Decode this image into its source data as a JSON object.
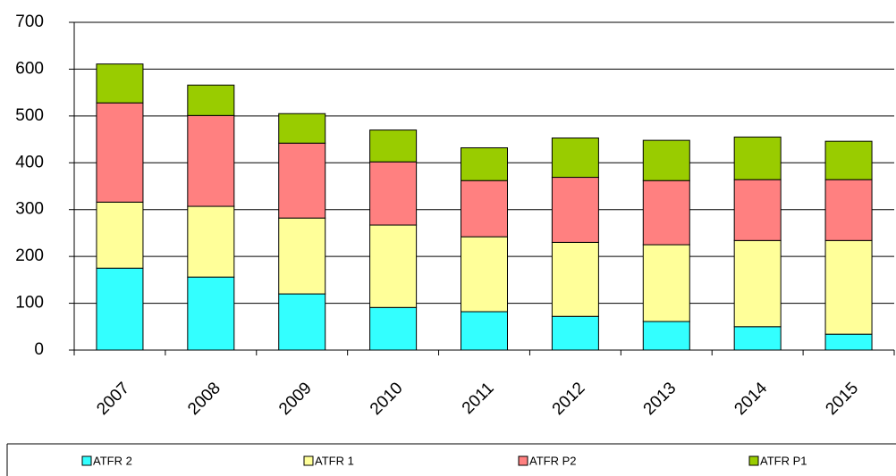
{
  "chart_data": {
    "type": "stacked_bar",
    "categories": [
      "2007",
      "2008",
      "2009",
      "2010",
      "2011",
      "2012",
      "2013",
      "2014",
      "2015"
    ],
    "series": [
      {
        "name": "ATFR 2",
        "color": "#33ffff",
        "values": [
          175,
          156,
          120,
          91,
          82,
          72,
          61,
          50,
          34
        ]
      },
      {
        "name": "ATFR 1",
        "color": "#ffff99",
        "values": [
          141,
          151,
          162,
          176,
          160,
          158,
          164,
          184,
          200
        ]
      },
      {
        "name": "ATFR P2",
        "color": "#ff8080",
        "values": [
          212,
          194,
          160,
          135,
          120,
          139,
          137,
          130,
          130
        ]
      },
      {
        "name": "ATFR P1",
        "color": "#99cc00",
        "values": [
          83,
          65,
          63,
          68,
          70,
          84,
          86,
          91,
          82
        ]
      }
    ],
    "ylim": [
      0,
      700
    ],
    "yticks": [
      0,
      100,
      200,
      300,
      400,
      500,
      600,
      700
    ],
    "grid": true,
    "legend": "bottom"
  }
}
